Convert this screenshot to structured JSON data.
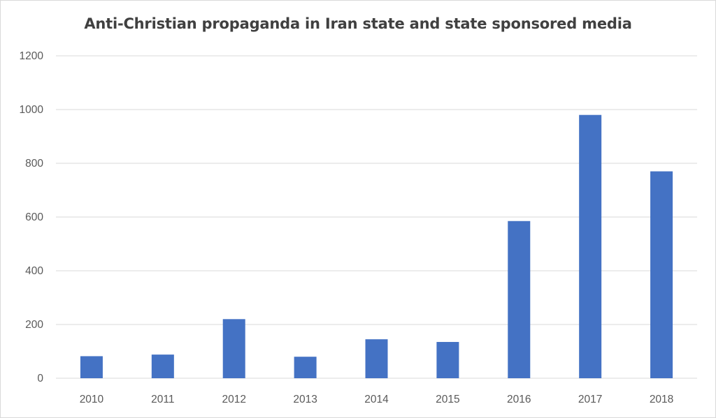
{
  "chart_data": {
    "type": "bar",
    "title": "Anti-Christian propaganda in Iran state and state sponsored media",
    "categories": [
      "2010",
      "2011",
      "2012",
      "2013",
      "2014",
      "2015",
      "2016",
      "2017",
      "2018"
    ],
    "values": [
      82,
      88,
      220,
      80,
      145,
      135,
      585,
      980,
      770
    ],
    "yticks": [
      "0",
      "200",
      "400",
      "600",
      "800",
      "1000",
      "1200"
    ],
    "ylim": [
      0,
      1200
    ],
    "grid": true,
    "bar_color": "#4472c4",
    "grid_color": "#d9d9d9",
    "text_color": "#595959"
  }
}
